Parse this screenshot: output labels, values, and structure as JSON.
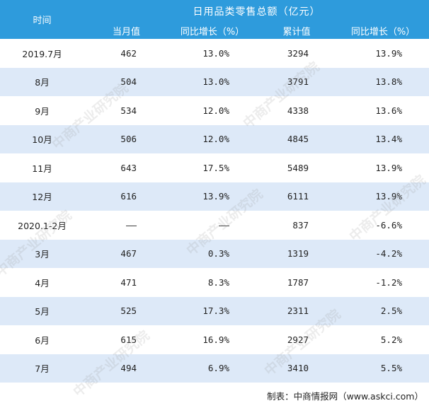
{
  "header": {
    "time_label": "时间",
    "group_label": "日用品类零售总额（亿元）",
    "columns": [
      "当月值",
      "同比增长（%）",
      "累计值",
      "同比增长（%）"
    ]
  },
  "rows": [
    {
      "period": "2019.7月",
      "monthly": "462",
      "monthly_yoy": "13.0%",
      "cumulative": "3294",
      "cumulative_yoy": "13.9%"
    },
    {
      "period": "8月",
      "monthly": "504",
      "monthly_yoy": "13.0%",
      "cumulative": "3791",
      "cumulative_yoy": "13.8%"
    },
    {
      "period": "9月",
      "monthly": "534",
      "monthly_yoy": "12.0%",
      "cumulative": "4338",
      "cumulative_yoy": "13.6%"
    },
    {
      "period": "10月",
      "monthly": "506",
      "monthly_yoy": "12.0%",
      "cumulative": "4845",
      "cumulative_yoy": "13.4%"
    },
    {
      "period": "11月",
      "monthly": "643",
      "monthly_yoy": "17.5%",
      "cumulative": "5489",
      "cumulative_yoy": "13.9%"
    },
    {
      "period": "12月",
      "monthly": "616",
      "monthly_yoy": "13.9%",
      "cumulative": "6111",
      "cumulative_yoy": "13.9%"
    },
    {
      "period": "2020.1-2月",
      "monthly": "——",
      "monthly_yoy": "——",
      "cumulative": "837",
      "cumulative_yoy": "-6.6%"
    },
    {
      "period": "3月",
      "monthly": "467",
      "monthly_yoy": "0.3%",
      "cumulative": "1319",
      "cumulative_yoy": "-4.2%"
    },
    {
      "period": "4月",
      "monthly": "471",
      "monthly_yoy": "8.3%",
      "cumulative": "1787",
      "cumulative_yoy": "-1.2%"
    },
    {
      "period": "5月",
      "monthly": "525",
      "monthly_yoy": "17.3%",
      "cumulative": "2311",
      "cumulative_yoy": "2.5%"
    },
    {
      "period": "6月",
      "monthly": "615",
      "monthly_yoy": "16.9%",
      "cumulative": "2927",
      "cumulative_yoy": "5.2%"
    },
    {
      "period": "7月",
      "monthly": "494",
      "monthly_yoy": "6.9%",
      "cumulative": "3410",
      "cumulative_yoy": "5.5%"
    }
  ],
  "source": "制表：中商情报网（www.askci.com）",
  "watermark": "中商产业研究院",
  "colors": {
    "header_bg": "#2e9bdc",
    "stripe_bg": "#dde9f8"
  }
}
